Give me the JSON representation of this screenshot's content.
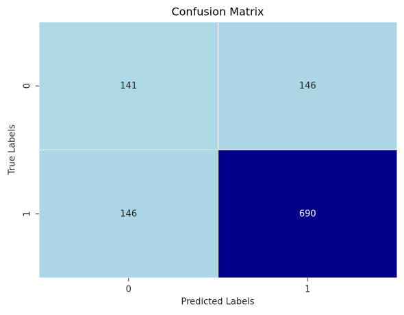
{
  "chart_data": {
    "type": "heatmap",
    "title": "Confusion Matrix",
    "x_label": "Predicted Labels",
    "y_label": "True Labels",
    "x_categories": [
      "0",
      "1"
    ],
    "y_categories": [
      "0",
      "1"
    ],
    "values": [
      [
        141,
        146
      ],
      [
        146,
        690
      ]
    ],
    "colormap": [
      "#add8e6",
      "#00008b"
    ]
  }
}
